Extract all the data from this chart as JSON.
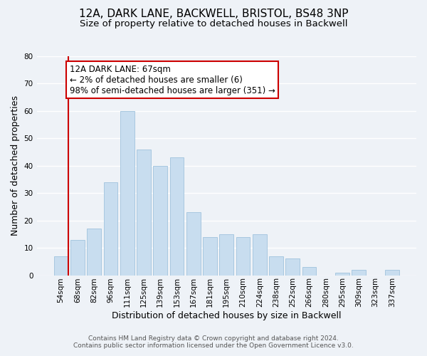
{
  "title": "12A, DARK LANE, BACKWELL, BRISTOL, BS48 3NP",
  "subtitle": "Size of property relative to detached houses in Backwell",
  "xlabel": "Distribution of detached houses by size in Backwell",
  "ylabel": "Number of detached properties",
  "footer_line1": "Contains HM Land Registry data © Crown copyright and database right 2024.",
  "footer_line2": "Contains public sector information licensed under the Open Government Licence v3.0.",
  "bar_labels": [
    "54sqm",
    "68sqm",
    "82sqm",
    "96sqm",
    "111sqm",
    "125sqm",
    "139sqm",
    "153sqm",
    "167sqm",
    "181sqm",
    "195sqm",
    "210sqm",
    "224sqm",
    "238sqm",
    "252sqm",
    "266sqm",
    "280sqm",
    "295sqm",
    "309sqm",
    "323sqm",
    "337sqm"
  ],
  "bar_values": [
    7,
    13,
    17,
    34,
    60,
    46,
    40,
    43,
    23,
    14,
    15,
    14,
    15,
    7,
    6,
    3,
    0,
    1,
    2,
    0,
    2
  ],
  "highlight_line_after_bar": 0,
  "highlight_color": "#cc0000",
  "normal_bar_color": "#c8ddef",
  "normal_bar_edge": "#a8c8e0",
  "annotation_title": "12A DARK LANE: 67sqm",
  "annotation_line2": "← 2% of detached houses are smaller (6)",
  "annotation_line3": "98% of semi-detached houses are larger (351) →",
  "annotation_box_color": "#ffffff",
  "annotation_border_color": "#cc0000",
  "ylim": [
    0,
    80
  ],
  "yticks": [
    0,
    10,
    20,
    30,
    40,
    50,
    60,
    70,
    80
  ],
  "background_color": "#eef2f7",
  "grid_color": "#ffffff",
  "title_fontsize": 11,
  "subtitle_fontsize": 9.5,
  "axis_label_fontsize": 9,
  "tick_fontsize": 7.5,
  "annotation_fontsize": 8.5,
  "footer_fontsize": 6.5
}
